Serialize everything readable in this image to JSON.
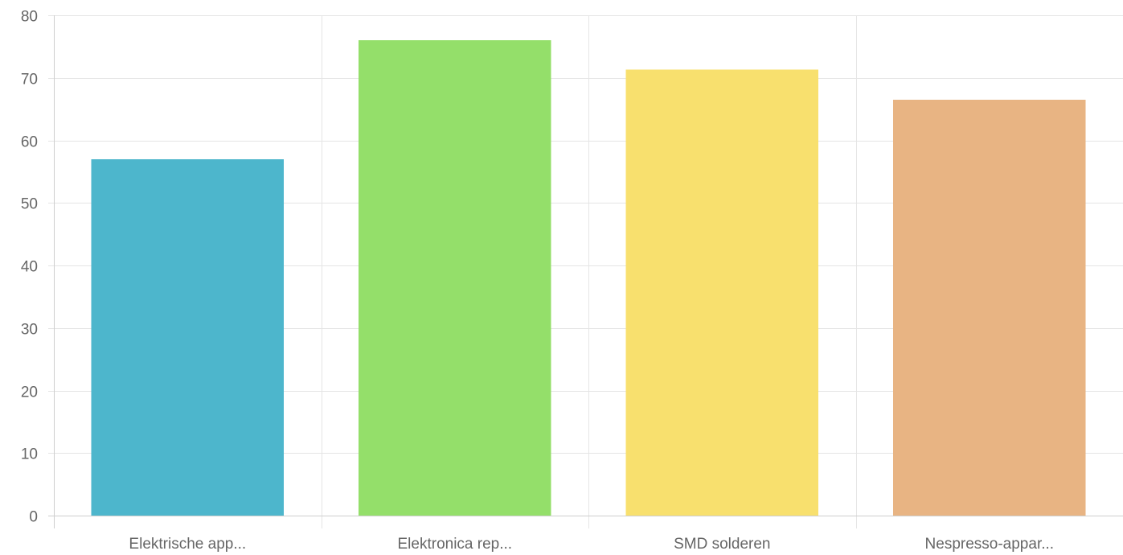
{
  "chart_data": {
    "type": "bar",
    "title": "",
    "xlabel": "",
    "ylabel": "",
    "categories": [
      "Elektrische app...",
      "Elektronica rep...",
      "SMD solderen",
      "Nespresso-appar..."
    ],
    "values": [
      57,
      76,
      71.3,
      66.5
    ],
    "colors": [
      "#4db6cc",
      "#94df6a",
      "#f8e06e",
      "#e8b483"
    ],
    "ylim": [
      0,
      80
    ],
    "yticks": [
      0,
      10,
      20,
      30,
      40,
      50,
      60,
      70,
      80
    ],
    "grid": true,
    "legend": "none"
  }
}
